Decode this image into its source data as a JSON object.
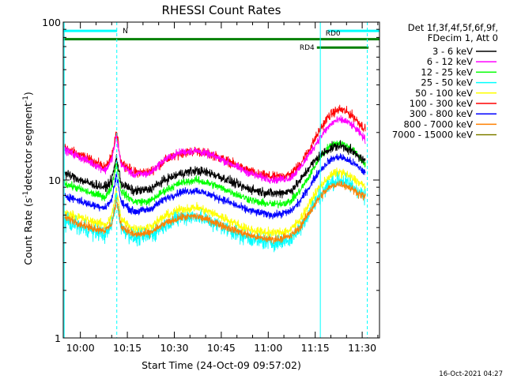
{
  "chart_data": {
    "type": "line",
    "title": "RHESSI Count Rates",
    "xlabel": "Start Time (24-Oct-09 09:57:02)",
    "ylabel": "Count Rate (s",
    "ylabel_sup": "-1",
    "ylabel_tail": "detector segment",
    "ylabel_sup2": "-1",
    "ylabel_end": ")",
    "x_unit": "minutes since 09:57:02",
    "xlim_minutes": [
      -2.5,
      98.5
    ],
    "ylim": [
      1,
      100
    ],
    "y_scale": "log",
    "grid": false,
    "x_ticks": [
      {
        "label": "10:00",
        "minute": 2.97
      },
      {
        "label": "10:15",
        "minute": 17.97
      },
      {
        "label": "10:30",
        "minute": 32.97
      },
      {
        "label": "10:45",
        "minute": 47.97
      },
      {
        "label": "11:00",
        "minute": 62.97
      },
      {
        "label": "11:15",
        "minute": 77.97
      },
      {
        "label": "11:30",
        "minute": 92.97
      }
    ],
    "y_ticks": [
      {
        "label": "1",
        "value": 1
      },
      {
        "label": "10",
        "value": 10
      },
      {
        "label": "100",
        "value": 100
      }
    ],
    "legend": {
      "placement": "right",
      "header": [
        "Det 1f,3f,4f,5f,6f,9f,",
        "FDecim 1, Att 0"
      ],
      "entries": [
        {
          "name": "3 - 6 keV",
          "color": "#000000"
        },
        {
          "name": "6 - 12 keV",
          "color": "#ff00ff"
        },
        {
          "name": "12 - 25 keV",
          "color": "#00ff00"
        },
        {
          "name": "25 - 50 keV",
          "color": "#00ffff"
        },
        {
          "name": "50 - 100 keV",
          "color": "#ffff00"
        },
        {
          "name": "100 - 300 keV",
          "color": "#ff0000"
        },
        {
          "name": "300 - 800 keV",
          "color": "#0000ff"
        },
        {
          "name": "800 - 7000 keV",
          "color": "#ff8000"
        },
        {
          "name": "7000 - 15000 keV",
          "color": "#808000"
        }
      ]
    },
    "series": [
      {
        "name": "100 - 300 keV",
        "color": "#ff0000",
        "noise": 0.06,
        "points": [
          [
            -2,
            16
          ],
          [
            6,
            13.5
          ],
          [
            11,
            12
          ],
          [
            13,
            14
          ],
          [
            14.5,
            20
          ],
          [
            16,
            13
          ],
          [
            20,
            11.2
          ],
          [
            25,
            11.2
          ],
          [
            30,
            13.3
          ],
          [
            35,
            14.8
          ],
          [
            40,
            15.3
          ],
          [
            45,
            14.5
          ],
          [
            50,
            13.2
          ],
          [
            55,
            11.8
          ],
          [
            60,
            10.8
          ],
          [
            65,
            10.4
          ],
          [
            70,
            10.8
          ],
          [
            73,
            12.5
          ],
          [
            76,
            15.5
          ],
          [
            79,
            20
          ],
          [
            82,
            25
          ],
          [
            84,
            27
          ],
          [
            86,
            28
          ],
          [
            88,
            27
          ],
          [
            90,
            25.5
          ],
          [
            92,
            23
          ],
          [
            94,
            21
          ]
        ]
      },
      {
        "name": "6 - 12 keV",
        "color": "#ff00ff",
        "noise": 0.05,
        "points": [
          [
            -2,
            15.5
          ],
          [
            6,
            13
          ],
          [
            11,
            11.5
          ],
          [
            13,
            13.5
          ],
          [
            14.5,
            19
          ],
          [
            16,
            12.5
          ],
          [
            20,
            10.8
          ],
          [
            25,
            11
          ],
          [
            30,
            13.5
          ],
          [
            35,
            15
          ],
          [
            40,
            15.3
          ],
          [
            45,
            14.3
          ],
          [
            50,
            13
          ],
          [
            55,
            11.5
          ],
          [
            60,
            10.5
          ],
          [
            65,
            10
          ],
          [
            70,
            10.3
          ],
          [
            73,
            11.8
          ],
          [
            76,
            14.5
          ],
          [
            79,
            18
          ],
          [
            82,
            21.5
          ],
          [
            84,
            23.5
          ],
          [
            86,
            24
          ],
          [
            88,
            23.5
          ],
          [
            90,
            22
          ],
          [
            92,
            20
          ],
          [
            94,
            18
          ]
        ]
      },
      {
        "name": "12 - 25 keV",
        "color": "#00ff00",
        "noise": 0.05,
        "points": [
          [
            -2,
            9.5
          ],
          [
            6,
            8.3
          ],
          [
            11,
            7.8
          ],
          [
            13,
            9
          ],
          [
            14.5,
            13
          ],
          [
            16,
            8.5
          ],
          [
            20,
            7.3
          ],
          [
            25,
            7.3
          ],
          [
            30,
            8.6
          ],
          [
            35,
            9.6
          ],
          [
            40,
            10
          ],
          [
            45,
            9.4
          ],
          [
            50,
            8.6
          ],
          [
            55,
            7.8
          ],
          [
            60,
            7.2
          ],
          [
            65,
            7
          ],
          [
            70,
            7.3
          ],
          [
            73,
            8.5
          ],
          [
            76,
            10.5
          ],
          [
            79,
            13.5
          ],
          [
            82,
            16
          ],
          [
            84,
            17
          ],
          [
            86,
            17.2
          ],
          [
            88,
            16.5
          ],
          [
            90,
            15.5
          ],
          [
            92,
            14
          ],
          [
            94,
            12.5
          ]
        ]
      },
      {
        "name": "3 - 6 keV",
        "color": "#000000",
        "noise": 0.06,
        "points": [
          [
            -2,
            11
          ],
          [
            6,
            9.5
          ],
          [
            11,
            9
          ],
          [
            13,
            10
          ],
          [
            14.5,
            14
          ],
          [
            16,
            9.5
          ],
          [
            20,
            8.5
          ],
          [
            25,
            8.7
          ],
          [
            30,
            10
          ],
          [
            35,
            11
          ],
          [
            40,
            11.5
          ],
          [
            45,
            11
          ],
          [
            50,
            10
          ],
          [
            55,
            9
          ],
          [
            60,
            8.5
          ],
          [
            65,
            8.2
          ],
          [
            70,
            8.5
          ],
          [
            73,
            9.8
          ],
          [
            76,
            12
          ],
          [
            79,
            14
          ],
          [
            82,
            15.5
          ],
          [
            84,
            16.2
          ],
          [
            86,
            16.5
          ],
          [
            88,
            16
          ],
          [
            90,
            15
          ],
          [
            92,
            14
          ],
          [
            94,
            13
          ]
        ]
      },
      {
        "name": "300 - 800 keV",
        "color": "#0000ff",
        "noise": 0.05,
        "points": [
          [
            -2,
            8
          ],
          [
            6,
            7
          ],
          [
            11,
            6.7
          ],
          [
            13,
            7.5
          ],
          [
            14.5,
            11
          ],
          [
            16,
            7.2
          ],
          [
            20,
            6.3
          ],
          [
            25,
            6.5
          ],
          [
            30,
            7.6
          ],
          [
            35,
            8.4
          ],
          [
            40,
            8.6
          ],
          [
            45,
            8
          ],
          [
            50,
            7.3
          ],
          [
            55,
            6.6
          ],
          [
            60,
            6.2
          ],
          [
            65,
            6
          ],
          [
            70,
            6.3
          ],
          [
            73,
            7.3
          ],
          [
            76,
            9
          ],
          [
            79,
            11.2
          ],
          [
            82,
            13
          ],
          [
            84,
            13.8
          ],
          [
            86,
            14
          ],
          [
            88,
            13.5
          ],
          [
            90,
            12.8
          ],
          [
            92,
            12
          ],
          [
            94,
            11
          ]
        ]
      },
      {
        "name": "50 - 100 keV",
        "color": "#ffff00",
        "noise": 0.06,
        "points": [
          [
            -2,
            6.2
          ],
          [
            6,
            5.5
          ],
          [
            11,
            5.2
          ],
          [
            13,
            5.9
          ],
          [
            14.5,
            8.8
          ],
          [
            16,
            5.6
          ],
          [
            20,
            4.9
          ],
          [
            25,
            5
          ],
          [
            30,
            5.9
          ],
          [
            35,
            6.5
          ],
          [
            40,
            6.7
          ],
          [
            45,
            6.2
          ],
          [
            50,
            5.6
          ],
          [
            55,
            5
          ],
          [
            60,
            4.7
          ],
          [
            65,
            4.6
          ],
          [
            70,
            4.8
          ],
          [
            73,
            5.6
          ],
          [
            76,
            7
          ],
          [
            79,
            8.8
          ],
          [
            82,
            10.3
          ],
          [
            84,
            11
          ],
          [
            86,
            11.2
          ],
          [
            88,
            10.8
          ],
          [
            90,
            10.2
          ],
          [
            92,
            9.6
          ],
          [
            94,
            9
          ]
        ]
      },
      {
        "name": "25 - 50 keV",
        "color": "#00ffff",
        "noise": 0.1,
        "points": [
          [
            -2,
            5.5
          ],
          [
            6,
            4.8
          ],
          [
            11,
            4.5
          ],
          [
            13,
            5.2
          ],
          [
            14.5,
            7.8
          ],
          [
            16,
            5
          ],
          [
            20,
            4.3
          ],
          [
            25,
            4.4
          ],
          [
            30,
            5.2
          ],
          [
            35,
            5.8
          ],
          [
            40,
            5.9
          ],
          [
            45,
            5.4
          ],
          [
            50,
            4.9
          ],
          [
            55,
            4.4
          ],
          [
            60,
            4.1
          ],
          [
            65,
            4
          ],
          [
            70,
            4.2
          ],
          [
            73,
            4.9
          ],
          [
            76,
            6.2
          ],
          [
            79,
            7.8
          ],
          [
            82,
            9.2
          ],
          [
            84,
            9.8
          ],
          [
            86,
            10
          ],
          [
            88,
            9.6
          ],
          [
            90,
            9.1
          ],
          [
            92,
            8.5
          ],
          [
            94,
            7.8
          ]
        ]
      },
      {
        "name": "800 - 7000 keV",
        "color": "#ff8000",
        "noise": 0.05,
        "points": [
          [
            -2,
            5.8
          ],
          [
            6,
            5
          ],
          [
            11,
            4.8
          ],
          [
            13,
            5.3
          ],
          [
            14.5,
            7.5
          ],
          [
            16,
            5.1
          ],
          [
            20,
            4.5
          ],
          [
            25,
            4.6
          ],
          [
            30,
            5.3
          ],
          [
            35,
            5.8
          ],
          [
            40,
            5.9
          ],
          [
            45,
            5.5
          ],
          [
            50,
            5
          ],
          [
            55,
            4.6
          ],
          [
            60,
            4.3
          ],
          [
            65,
            4.2
          ],
          [
            70,
            4.4
          ],
          [
            73,
            5
          ],
          [
            76,
            6.2
          ],
          [
            79,
            7.6
          ],
          [
            82,
            8.8
          ],
          [
            84,
            9.3
          ],
          [
            86,
            9.5
          ],
          [
            88,
            9.2
          ],
          [
            90,
            8.7
          ],
          [
            92,
            8.2
          ],
          [
            94,
            7.8
          ]
        ]
      }
    ],
    "annotations": [
      {
        "type": "bar",
        "color": "#00ffff",
        "x0": -2.5,
        "x1": 14.7,
        "y": 88,
        "label": "N"
      },
      {
        "type": "bar",
        "color": "#008000",
        "x0": -2.5,
        "x1": 98.5,
        "y": 78,
        "label": ""
      },
      {
        "type": "bar",
        "color": "#00ffff",
        "x0": 82,
        "x1": 98.5,
        "y": 88,
        "label": "RD0"
      },
      {
        "type": "bar",
        "color": "#008000",
        "x0": 78.5,
        "x1": 95,
        "y": 69,
        "label": "RD4"
      },
      {
        "type": "vline",
        "color": "#00ffff",
        "x": -2.2,
        "style": "solid"
      },
      {
        "type": "vline",
        "color": "#00ffff",
        "x": 14.6,
        "style": "dashed"
      },
      {
        "type": "vline",
        "color": "#00ffff",
        "x": 79.6,
        "style": "solid"
      },
      {
        "type": "vline",
        "color": "#00ffff",
        "x": 94.6,
        "style": "dashed"
      }
    ]
  },
  "footer": {
    "timestamp": "16-Oct-2021 04:27"
  }
}
